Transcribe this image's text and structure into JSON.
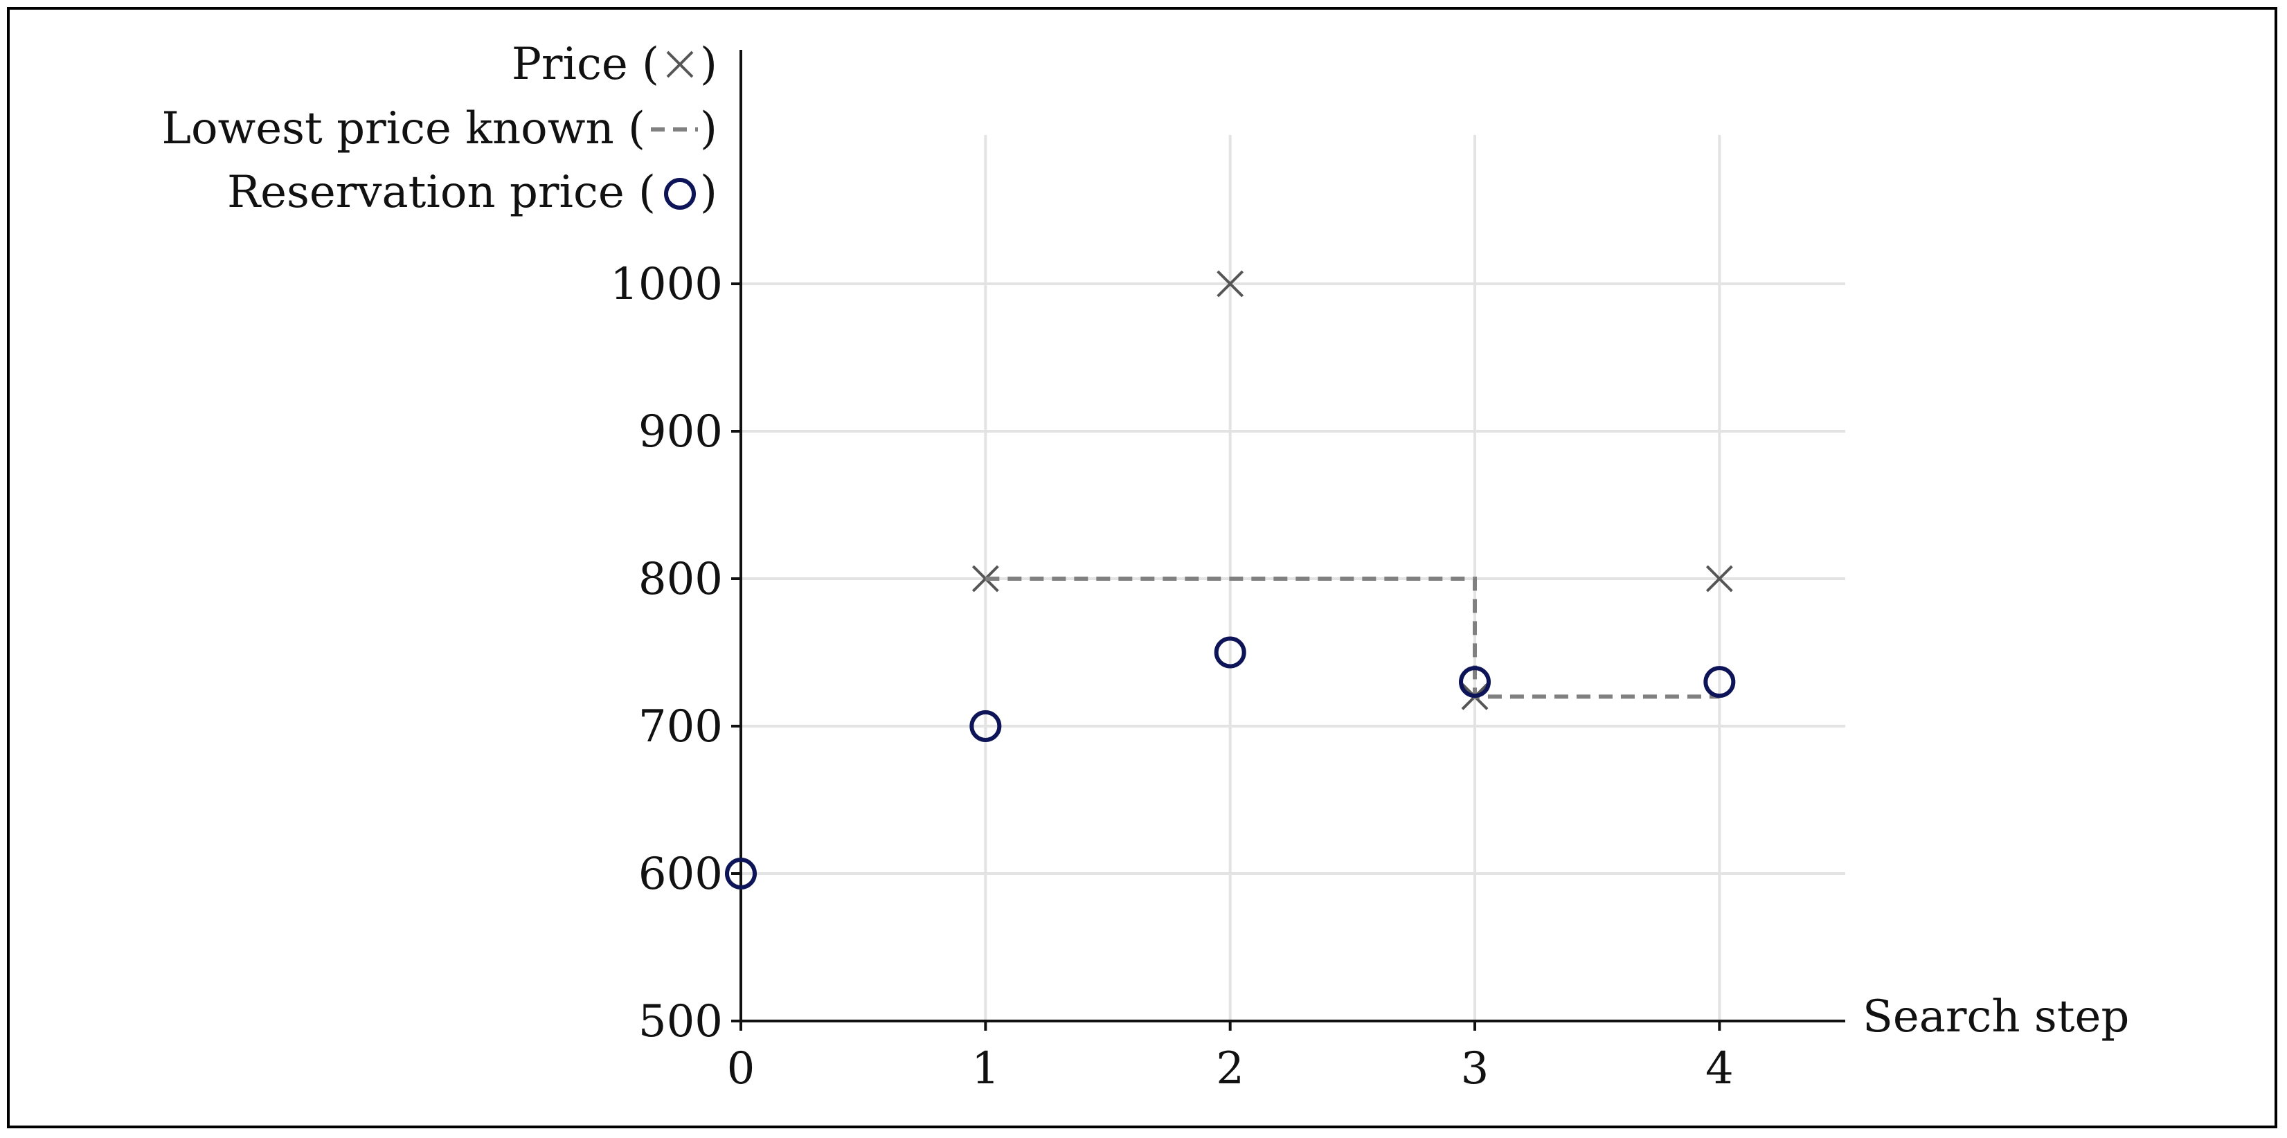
{
  "chart_data": {
    "type": "scatter",
    "xlabel": "Search step",
    "ylabel": "",
    "xlim": [
      0,
      4.5
    ],
    "ylim": [
      500,
      1000
    ],
    "x_ticks": [
      "0",
      "1",
      "2",
      "3",
      "4"
    ],
    "y_ticks": [
      "500",
      "600",
      "700",
      "800",
      "900",
      "1000"
    ],
    "grid": true,
    "legend_placement": "top-left",
    "legend": {
      "price": {
        "text": "Price (",
        "close": ")"
      },
      "lowest": {
        "text": "Lowest price known (",
        "close": ")"
      },
      "reservation": {
        "text": "Reservation price (",
        "close": ")"
      }
    },
    "series": [
      {
        "name": "Price",
        "marker": "x",
        "color": "#555555",
        "points": [
          [
            1,
            800
          ],
          [
            2,
            1000
          ],
          [
            3,
            720
          ],
          [
            4,
            800
          ]
        ]
      },
      {
        "name": "Lowest price known",
        "style": "dashed-step",
        "color": "#808080",
        "points": [
          [
            1,
            800
          ],
          [
            2,
            800
          ],
          [
            3,
            800
          ],
          [
            3,
            720
          ],
          [
            4,
            720
          ]
        ]
      },
      {
        "name": "Reservation price",
        "marker": "circle",
        "color": "#0d1457",
        "points": [
          [
            0,
            600
          ],
          [
            1,
            700
          ],
          [
            2,
            750
          ],
          [
            3,
            730
          ],
          [
            4,
            730
          ]
        ]
      }
    ]
  }
}
